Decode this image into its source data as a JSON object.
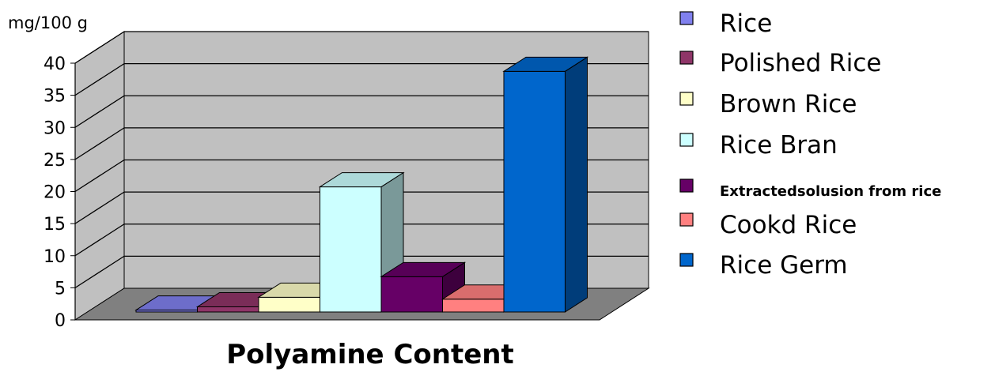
{
  "chart_data": {
    "type": "bar",
    "style": "3d",
    "unit_label": "mg/100 g",
    "xlabel": "Polyamine Content",
    "ylim": [
      0,
      40
    ],
    "yticks": [
      0,
      5,
      10,
      15,
      20,
      25,
      30,
      35,
      40
    ],
    "grid": true,
    "legend_position": "right",
    "series": [
      {
        "name": "Rice",
        "value": 0.3,
        "color": "#8080ee"
      },
      {
        "name": "Polished Rice",
        "value": 0.8,
        "color": "#8f3568"
      },
      {
        "name": "Brown Rice",
        "value": 2.3,
        "color": "#ffffc8"
      },
      {
        "name": "Rice Bran",
        "value": 19.5,
        "color": "#ccffff"
      },
      {
        "name": "Extractedsolusion from rice",
        "value": 5.5,
        "color": "#660066"
      },
      {
        "name": "Cookd Rice",
        "value": 2.0,
        "color": "#ff8080"
      },
      {
        "name": "Rice Germ",
        "value": 37.5,
        "color": "#0066cc"
      }
    ]
  }
}
